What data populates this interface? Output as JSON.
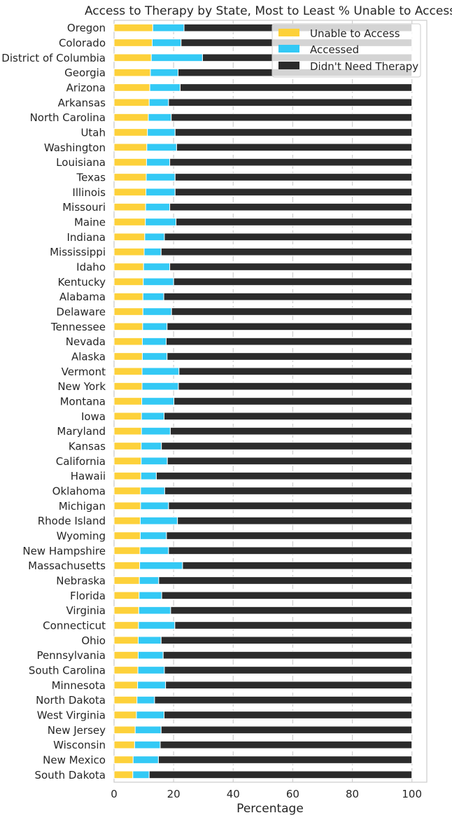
{
  "chart_data": {
    "type": "bar",
    "orientation": "horizontal",
    "stacked": true,
    "title": "Access to Therapy by State, Most to Least % Unable to Access",
    "xlabel": "Percentage",
    "ylabel": "",
    "xlim": [
      0,
      105
    ],
    "xticks": [
      0,
      20,
      40,
      60,
      80,
      100
    ],
    "grid": true,
    "legend_position": "top-right",
    "categories": [
      "Oregon",
      "Colorado",
      "District of Columbia",
      "Georgia",
      "Arizona",
      "Arkansas",
      "North Carolina",
      "Utah",
      "Washington",
      "Louisiana",
      "Texas",
      "Illinois",
      "Missouri",
      "Maine",
      "Indiana",
      "Mississippi",
      "Idaho",
      "Kentucky",
      "Alabama",
      "Delaware",
      "Tennessee",
      "Nevada",
      "Alaska",
      "Vermont",
      "New York",
      "Montana",
      "Iowa",
      "Maryland",
      "Kansas",
      "California",
      "Hawaii",
      "Oklahoma",
      "Michigan",
      "Rhode Island",
      "Wyoming",
      "New Hampshire",
      "Massachusetts",
      "Nebraska",
      "Florida",
      "Virginia",
      "Connecticut",
      "Ohio",
      "Pennsylvania",
      "South Carolina",
      "Minnesota",
      "North Dakota",
      "West Virginia",
      "New Jersey",
      "Wisconsin",
      "New Mexico",
      "South Dakota"
    ],
    "series": [
      {
        "name": "Unable to Access",
        "color": "#fdd13a",
        "values": [
          13.0,
          12.8,
          12.5,
          12.2,
          12.0,
          11.8,
          11.5,
          11.2,
          11.0,
          10.9,
          10.8,
          10.7,
          10.6,
          10.5,
          10.3,
          10.1,
          9.9,
          9.8,
          9.7,
          9.7,
          9.6,
          9.5,
          9.5,
          9.4,
          9.4,
          9.3,
          9.2,
          9.2,
          9.1,
          9.1,
          9.0,
          8.9,
          8.9,
          8.8,
          8.8,
          8.7,
          8.6,
          8.5,
          8.4,
          8.3,
          8.2,
          8.1,
          8.1,
          8.0,
          7.9,
          7.7,
          7.5,
          7.1,
          6.9,
          6.4,
          6.3
        ]
      },
      {
        "name": "Accessed",
        "color": "#33c9f5",
        "values": [
          10.5,
          9.7,
          17.2,
          9.3,
          10.2,
          6.5,
          7.7,
          9.3,
          10.0,
          7.8,
          9.7,
          9.8,
          8.1,
          10.3,
          6.6,
          5.7,
          8.8,
          10.2,
          7.0,
          9.6,
          8.2,
          8.0,
          8.3,
          12.4,
          12.2,
          10.8,
          7.6,
          9.7,
          6.8,
          8.8,
          5.2,
          8.1,
          9.4,
          12.5,
          8.8,
          9.6,
          14.4,
          6.5,
          7.6,
          10.7,
          12.2,
          7.7,
          8.4,
          8.9,
          9.4,
          5.9,
          9.3,
          8.7,
          8.6,
          8.5,
          5.5
        ]
      },
      {
        "name": "Didn't Need Therapy",
        "color": "#2b2b2b",
        "values": [
          76.5,
          77.5,
          70.3,
          78.5,
          77.8,
          81.7,
          80.8,
          79.5,
          79.0,
          81.3,
          79.5,
          79.5,
          81.3,
          79.2,
          83.1,
          84.2,
          81.3,
          80.0,
          83.3,
          80.7,
          82.2,
          82.5,
          82.2,
          78.2,
          78.4,
          79.9,
          83.2,
          81.1,
          84.1,
          82.1,
          85.8,
          83.0,
          81.7,
          78.7,
          82.4,
          81.7,
          77.0,
          85.0,
          84.0,
          81.0,
          79.6,
          84.2,
          83.5,
          83.1,
          82.7,
          86.4,
          83.2,
          84.2,
          84.5,
          85.1,
          88.2
        ]
      }
    ]
  }
}
